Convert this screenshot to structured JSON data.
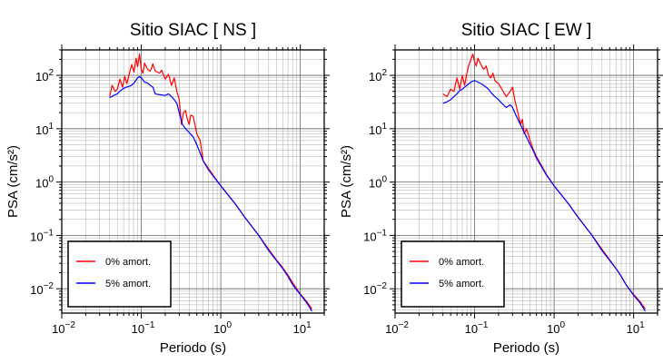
{
  "chart_data": [
    {
      "type": "line",
      "title": "Sitio SIAC [ NS ]",
      "xlabel": "Periodo (s)",
      "ylabel": "PSA (cm/s²)",
      "xscale": "log",
      "yscale": "log",
      "xlim": [
        0.01,
        20
      ],
      "ylim": [
        0.0035,
        300
      ],
      "grid": true,
      "legend_position": "bottom-left",
      "x_tick_labels": [
        {
          "value": 0.01,
          "base": "10",
          "exp": "−2"
        },
        {
          "value": 0.1,
          "base": "10",
          "exp": "−1"
        },
        {
          "value": 1,
          "base": "10",
          "exp": "0"
        },
        {
          "value": 10,
          "base": "10",
          "exp": "1"
        }
      ],
      "y_tick_labels": [
        {
          "value": 0.01,
          "base": "10",
          "exp": "−2"
        },
        {
          "value": 0.1,
          "base": "10",
          "exp": "−1"
        },
        {
          "value": 1,
          "base": "10",
          "exp": "0"
        },
        {
          "value": 10,
          "base": "10",
          "exp": "1"
        },
        {
          "value": 100,
          "base": "10",
          "exp": "2"
        }
      ],
      "series": [
        {
          "name": "0% amort.",
          "color": "#ff0000",
          "points": [
            [
              0.04,
              40
            ],
            [
              0.043,
              65
            ],
            [
              0.047,
              50
            ],
            [
              0.05,
              55
            ],
            [
              0.054,
              85
            ],
            [
              0.058,
              60
            ],
            [
              0.062,
              95
            ],
            [
              0.066,
              70
            ],
            [
              0.071,
              110
            ],
            [
              0.076,
              160
            ],
            [
              0.081,
              115
            ],
            [
              0.086,
              210
            ],
            [
              0.09,
              145
            ],
            [
              0.095,
              250
            ],
            [
              0.1,
              130
            ],
            [
              0.105,
              110
            ],
            [
              0.11,
              170
            ],
            [
              0.12,
              130
            ],
            [
              0.13,
              120
            ],
            [
              0.14,
              165
            ],
            [
              0.15,
              120
            ],
            [
              0.17,
              110
            ],
            [
              0.18,
              125
            ],
            [
              0.2,
              85
            ],
            [
              0.22,
              105
            ],
            [
              0.24,
              65
            ],
            [
              0.26,
              90
            ],
            [
              0.28,
              50
            ],
            [
              0.3,
              35
            ],
            [
              0.32,
              12
            ],
            [
              0.34,
              20
            ],
            [
              0.36,
              22
            ],
            [
              0.38,
              15
            ],
            [
              0.4,
              12
            ],
            [
              0.42,
              18
            ],
            [
              0.45,
              17
            ],
            [
              0.5,
              8
            ],
            [
              0.55,
              6
            ],
            [
              0.6,
              2.5
            ],
            [
              0.7,
              1.8
            ],
            [
              0.8,
              1.35
            ],
            [
              1,
              0.85
            ],
            [
              1.5,
              0.4
            ],
            [
              2,
              0.22
            ],
            [
              3,
              0.1
            ],
            [
              4,
              0.055
            ],
            [
              5,
              0.035
            ],
            [
              6,
              0.025
            ],
            [
              7,
              0.018
            ],
            [
              8,
              0.013
            ],
            [
              9,
              0.01
            ],
            [
              10,
              0.008
            ],
            [
              12,
              0.0058
            ],
            [
              14,
              0.0042
            ]
          ]
        },
        {
          "name": "5% amort.",
          "color": "#0000ff",
          "points": [
            [
              0.04,
              38
            ],
            [
              0.045,
              42
            ],
            [
              0.05,
              45
            ],
            [
              0.055,
              52
            ],
            [
              0.06,
              57
            ],
            [
              0.065,
              60
            ],
            [
              0.07,
              62
            ],
            [
              0.075,
              65
            ],
            [
              0.08,
              70
            ],
            [
              0.085,
              80
            ],
            [
              0.09,
              90
            ],
            [
              0.095,
              95
            ],
            [
              0.1,
              90
            ],
            [
              0.11,
              75
            ],
            [
              0.12,
              72
            ],
            [
              0.13,
              65
            ],
            [
              0.14,
              60
            ],
            [
              0.15,
              45
            ],
            [
              0.16,
              44
            ],
            [
              0.18,
              43
            ],
            [
              0.2,
              42
            ],
            [
              0.22,
              45
            ],
            [
              0.24,
              40
            ],
            [
              0.26,
              35
            ],
            [
              0.28,
              30
            ],
            [
              0.3,
              20
            ],
            [
              0.33,
              12
            ],
            [
              0.36,
              10
            ],
            [
              0.4,
              8.5
            ],
            [
              0.45,
              7
            ],
            [
              0.5,
              5
            ],
            [
              0.55,
              3.5
            ],
            [
              0.6,
              2.5
            ],
            [
              0.7,
              1.7
            ],
            [
              0.8,
              1.3
            ],
            [
              1,
              0.85
            ],
            [
              1.5,
              0.4
            ],
            [
              2,
              0.22
            ],
            [
              3,
              0.1
            ],
            [
              4,
              0.052
            ],
            [
              5,
              0.034
            ],
            [
              6,
              0.024
            ],
            [
              7,
              0.017
            ],
            [
              8,
              0.012
            ],
            [
              9,
              0.0095
            ],
            [
              10,
              0.0078
            ],
            [
              12,
              0.0055
            ],
            [
              14,
              0.0038
            ]
          ]
        }
      ]
    },
    {
      "type": "line",
      "title": "Sitio SIAC [ EW ]",
      "xlabel": "Periodo (s)",
      "ylabel": "PSA (cm/s²)",
      "xscale": "log",
      "yscale": "log",
      "xlim": [
        0.01,
        20
      ],
      "ylim": [
        0.0035,
        300
      ],
      "grid": true,
      "legend_position": "bottom-left",
      "x_tick_labels": [
        {
          "value": 0.01,
          "base": "10",
          "exp": "−2"
        },
        {
          "value": 0.1,
          "base": "10",
          "exp": "−1"
        },
        {
          "value": 1,
          "base": "10",
          "exp": "0"
        },
        {
          "value": 10,
          "base": "10",
          "exp": "1"
        }
      ],
      "y_tick_labels": [
        {
          "value": 0.01,
          "base": "10",
          "exp": "−2"
        },
        {
          "value": 0.1,
          "base": "10",
          "exp": "−1"
        },
        {
          "value": 1,
          "base": "10",
          "exp": "0"
        },
        {
          "value": 10,
          "base": "10",
          "exp": "1"
        },
        {
          "value": 100,
          "base": "10",
          "exp": "2"
        }
      ],
      "series": [
        {
          "name": "0% amort.",
          "color": "#ff0000",
          "points": [
            [
              0.04,
              45
            ],
            [
              0.045,
              40
            ],
            [
              0.05,
              55
            ],
            [
              0.055,
              50
            ],
            [
              0.06,
              90
            ],
            [
              0.065,
              55
            ],
            [
              0.07,
              100
            ],
            [
              0.075,
              65
            ],
            [
              0.08,
              110
            ],
            [
              0.085,
              160
            ],
            [
              0.09,
              200
            ],
            [
              0.095,
              250
            ],
            [
              0.1,
              180
            ],
            [
              0.105,
              150
            ],
            [
              0.11,
              210
            ],
            [
              0.12,
              160
            ],
            [
              0.13,
              130
            ],
            [
              0.14,
              150
            ],
            [
              0.15,
              100
            ],
            [
              0.16,
              90
            ],
            [
              0.17,
              110
            ],
            [
              0.18,
              80
            ],
            [
              0.2,
              70
            ],
            [
              0.22,
              55
            ],
            [
              0.25,
              40
            ],
            [
              0.28,
              50
            ],
            [
              0.3,
              60
            ],
            [
              0.32,
              35
            ],
            [
              0.35,
              20
            ],
            [
              0.38,
              12
            ],
            [
              0.4,
              15
            ],
            [
              0.42,
              8
            ],
            [
              0.45,
              10
            ],
            [
              0.5,
              6
            ],
            [
              0.55,
              4
            ],
            [
              0.6,
              3
            ],
            [
              0.7,
              2
            ],
            [
              0.8,
              1.4
            ],
            [
              1,
              0.85
            ],
            [
              1.5,
              0.4
            ],
            [
              2,
              0.22
            ],
            [
              3,
              0.1
            ],
            [
              4,
              0.055
            ],
            [
              5,
              0.035
            ],
            [
              6,
              0.024
            ],
            [
              7,
              0.017
            ],
            [
              8,
              0.012
            ],
            [
              9,
              0.0095
            ],
            [
              10,
              0.0078
            ],
            [
              12,
              0.0058
            ],
            [
              14,
              0.0042
            ]
          ]
        },
        {
          "name": "5% amort.",
          "color": "#0000ff",
          "points": [
            [
              0.04,
              30
            ],
            [
              0.045,
              32
            ],
            [
              0.05,
              35
            ],
            [
              0.055,
              40
            ],
            [
              0.06,
              45
            ],
            [
              0.065,
              52
            ],
            [
              0.07,
              55
            ],
            [
              0.075,
              60
            ],
            [
              0.08,
              65
            ],
            [
              0.085,
              70
            ],
            [
              0.09,
              75
            ],
            [
              0.095,
              78
            ],
            [
              0.1,
              80
            ],
            [
              0.11,
              75
            ],
            [
              0.12,
              70
            ],
            [
              0.13,
              65
            ],
            [
              0.14,
              60
            ],
            [
              0.15,
              55
            ],
            [
              0.16,
              48
            ],
            [
              0.18,
              40
            ],
            [
              0.2,
              35
            ],
            [
              0.22,
              30
            ],
            [
              0.25,
              25
            ],
            [
              0.28,
              28
            ],
            [
              0.3,
              25
            ],
            [
              0.32,
              20
            ],
            [
              0.35,
              15
            ],
            [
              0.4,
              10
            ],
            [
              0.45,
              7
            ],
            [
              0.5,
              5
            ],
            [
              0.55,
              3.8
            ],
            [
              0.6,
              2.8
            ],
            [
              0.7,
              1.9
            ],
            [
              0.8,
              1.35
            ],
            [
              1,
              0.85
            ],
            [
              1.5,
              0.4
            ],
            [
              2,
              0.22
            ],
            [
              3,
              0.1
            ],
            [
              4,
              0.052
            ],
            [
              5,
              0.034
            ],
            [
              6,
              0.024
            ],
            [
              7,
              0.017
            ],
            [
              8,
              0.012
            ],
            [
              9,
              0.0095
            ],
            [
              10,
              0.0075
            ],
            [
              12,
              0.0055
            ],
            [
              14,
              0.0038
            ]
          ]
        }
      ]
    }
  ]
}
